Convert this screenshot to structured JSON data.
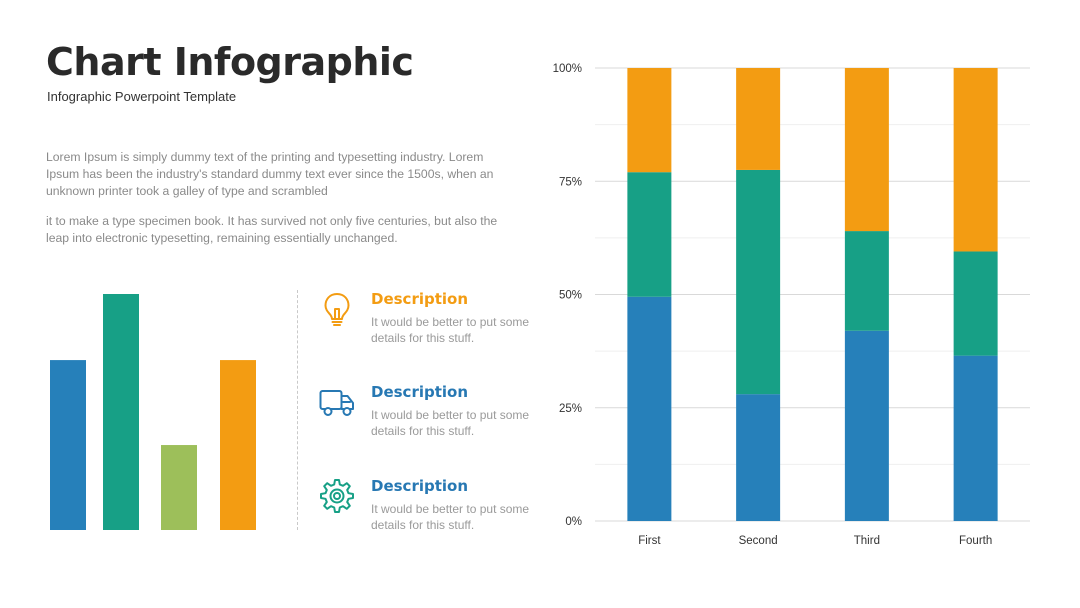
{
  "header": {
    "title": "Chart Infographic",
    "subtitle": "Infographic Powerpoint Template"
  },
  "body": {
    "paragraph1": "Lorem Ipsum is simply dummy text of the printing and typesetting industry. Lorem Ipsum has been the industry's standard dummy text ever since the 1500s, when an unknown printer took a galley of type and scrambled",
    "paragraph2": "it to make a type specimen book. It has survived not only five centuries, but also the leap into electronic typesetting, remaining essentially unchanged."
  },
  "descriptions": [
    {
      "title": "Description",
      "text": "It would be better to put some details for this stuff.",
      "icon": "lightbulb-icon",
      "color": "#f39c12"
    },
    {
      "title": "Description",
      "text": "It would be better to put some details for this stuff.",
      "icon": "truck-icon",
      "color": "#2778b3"
    },
    {
      "title": "Description",
      "text": "It would be better to put some details for this stuff.",
      "icon": "gear-icon",
      "color": "#2778b3"
    }
  ],
  "chart_data": [
    {
      "type": "bar",
      "title": "",
      "values": [
        72,
        100,
        36,
        72
      ],
      "colors": [
        "#2680ba",
        "#17a086",
        "#9dbf5a",
        "#f39c12"
      ],
      "ylim": [
        0,
        100
      ]
    },
    {
      "type": "bar",
      "stacked": true,
      "title": "",
      "categories": [
        "First",
        "Second",
        "Third",
        "Fourth"
      ],
      "y_ticks": [
        "0%",
        "25%",
        "50%",
        "75%",
        "100%"
      ],
      "ylim": [
        0,
        100
      ],
      "grid": true,
      "series": [
        {
          "color": "#2680ba",
          "values": [
            49.5,
            28,
            42,
            36.5
          ]
        },
        {
          "color": "#17a086",
          "values": [
            27.5,
            49.5,
            22,
            23
          ]
        },
        {
          "color": "#f39c12",
          "values": [
            23,
            22.5,
            36,
            40.5
          ]
        }
      ]
    }
  ]
}
